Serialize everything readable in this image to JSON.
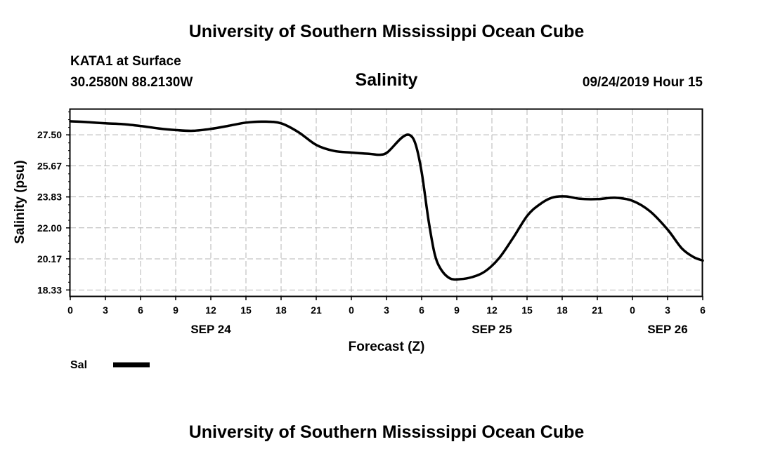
{
  "header": {
    "institution": "University of Southern Mississippi Ocean Cube",
    "station": "KATA1 at Surface",
    "coords": "30.2580N 88.2130W",
    "datetime": "09/24/2019 Hour 15"
  },
  "footer": {
    "institution": "University of Southern Mississippi Ocean Cube"
  },
  "chart_data": {
    "type": "line",
    "title": "Salinity",
    "xlabel": "Forecast (Z)",
    "ylabel": "Salinity (psu)",
    "xlim": [
      0,
      54
    ],
    "ylim": [
      17.97,
      29.0
    ],
    "yticks": [
      "27.50",
      "25.67",
      "23.83",
      "22.00",
      "20.17",
      "18.33"
    ],
    "xticks": [
      "0",
      "3",
      "6",
      "9",
      "12",
      "15",
      "18",
      "21",
      "0",
      "3",
      "6",
      "9",
      "12",
      "15",
      "18",
      "21",
      "0",
      "3",
      "6"
    ],
    "date_labels": [
      {
        "x": 12,
        "label": "SEP 24"
      },
      {
        "x": 36,
        "label": "SEP 25"
      },
      {
        "x": 51,
        "label": "SEP 26"
      }
    ],
    "grid": true,
    "legend_position": "bottom-left",
    "series": [
      {
        "name": "Sal",
        "color": "#000000",
        "x": [
          0,
          1.5,
          3,
          4.5,
          6,
          7.5,
          9,
          10.5,
          12,
          13.5,
          15,
          16.5,
          18,
          19.5,
          21,
          22.5,
          24,
          25.5,
          26.4,
          27.1,
          28.3,
          29,
          29.5,
          30,
          30.6,
          31.1,
          31.6,
          32.4,
          33.3,
          34.3,
          35.4,
          36.6,
          37.8,
          39,
          40,
          41.1,
          42.3,
          43.5,
          45,
          46.5,
          48,
          49.5,
          51,
          52.2,
          53.2,
          54
        ],
        "y": [
          28.3,
          28.25,
          28.18,
          28.13,
          28.02,
          27.88,
          27.78,
          27.74,
          27.85,
          28.03,
          28.22,
          28.28,
          28.18,
          27.65,
          26.9,
          26.55,
          26.45,
          26.38,
          26.32,
          26.48,
          27.33,
          27.48,
          26.9,
          25.3,
          22.4,
          20.5,
          19.6,
          19.02,
          18.97,
          19.09,
          19.42,
          20.2,
          21.4,
          22.7,
          23.35,
          23.78,
          23.86,
          23.72,
          23.7,
          23.78,
          23.6,
          22.98,
          21.9,
          20.8,
          20.28,
          20.07
        ]
      }
    ]
  }
}
